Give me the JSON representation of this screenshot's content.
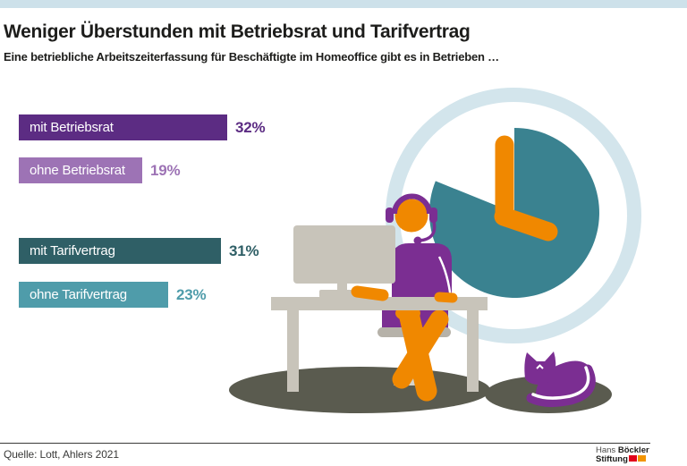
{
  "header": {
    "title": "Weniger Überstunden mit Betriebsrat und Tarifvertrag",
    "subtitle": "Eine betriebliche Arbeitszeiterfassung für Beschäftigte im Homeoffice gibt es in Betrieben …"
  },
  "chart_data": {
    "type": "bar",
    "orientation": "horizontal",
    "unit": "%",
    "xlim": [
      0,
      32
    ],
    "grid": false,
    "legend": false,
    "title": "Weniger Überstunden mit Betriebsrat und Tarifvertrag",
    "categories": [
      "mit Betriebsrat",
      "ohne Betriebsrat",
      "mit Tarifvertrag",
      "ohne Tarifvertrag"
    ],
    "values": [
      32,
      19,
      31,
      23
    ],
    "bars": [
      {
        "label": "mit Betriebsrat",
        "value": 32,
        "display": "32%",
        "color": "#5c2c83"
      },
      {
        "label": "ohne Betriebsrat",
        "value": 19,
        "display": "19%",
        "color": "#9d73b5"
      },
      {
        "label": "mit Tarifvertrag",
        "value": 31,
        "display": "31%",
        "color": "#2f5f66"
      },
      {
        "label": "ohne Tarifvertrag",
        "value": 23,
        "display": "23%",
        "color": "#4f9caa"
      }
    ]
  },
  "illustration": {
    "elements": [
      "clock-pie-icon",
      "worker-at-desk-illustration",
      "cat-illustration"
    ],
    "colors": {
      "clock_face": "#3a8290",
      "clock_hands": "#f08800",
      "ring": "#d3e5ec",
      "figure_purple": "#7b2e92",
      "skin_orange": "#f08800",
      "furniture": "#c8c4ba",
      "chair": "#b6b2a9",
      "shadow": "#5a5b4f"
    }
  },
  "footer": {
    "source": "Quelle: Lott, Ahlers 2021",
    "logo": {
      "line1_regular": "Hans",
      "line1_bold": "Böckler",
      "line2_bold": "Stiftung",
      "block_colors": [
        "#e2001a",
        "#f29400"
      ]
    }
  },
  "colors": {
    "top_bar": "#cde1ea",
    "text": "#1d1d1b"
  }
}
